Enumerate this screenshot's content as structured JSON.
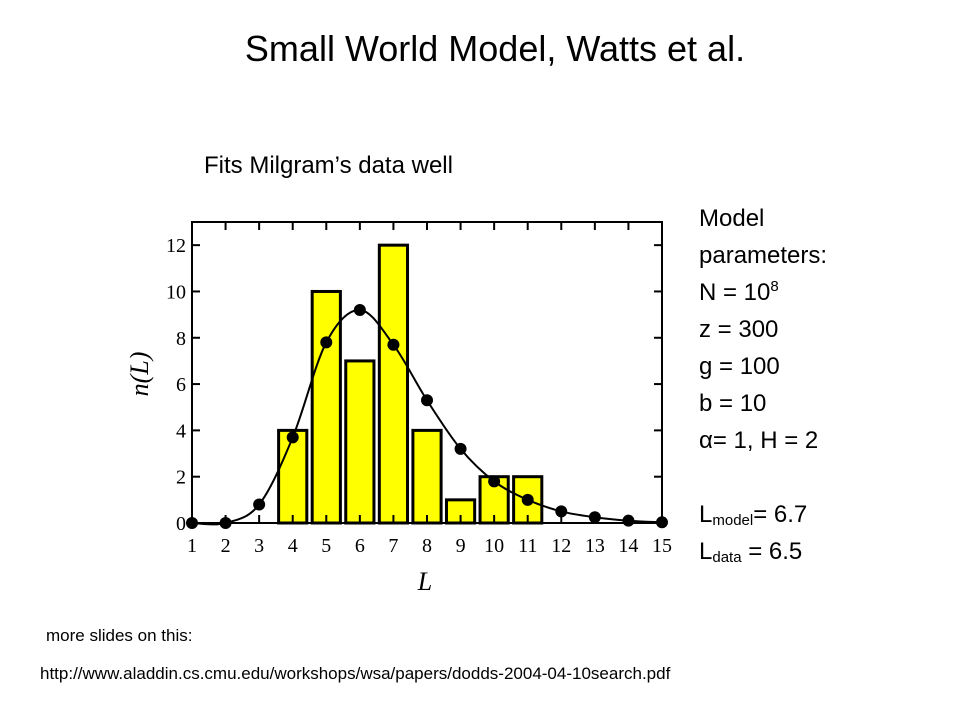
{
  "slide": {
    "title": "Small World Model, Watts et al.",
    "subtitle": "Fits Milgram’s data well",
    "params": {
      "heading_1": "Model",
      "heading_2": "parameters:",
      "n_label": "N = 10",
      "n_exp": "8",
      "z": "z = 300",
      "g": "g = 100",
      "b": "b = 10",
      "alpha_symbol": "α",
      "alpha_rest": "= 1, H = 2",
      "lmodel_L": "L",
      "lmodel_sub": "model",
      "lmodel_val": "= 6.7",
      "ldata_L": "L",
      "ldata_sub": "data",
      "ldata_val": " = 6.5"
    },
    "note": "more slides on this:",
    "url": "http://www.aladdin.cs.cmu.edu/workshops/wsa/papers/dodds-2004-04-10search.pdf"
  },
  "chart_data": {
    "type": "bar",
    "x": [
      1,
      2,
      3,
      4,
      5,
      6,
      7,
      8,
      9,
      10,
      11,
      12,
      13,
      14,
      15
    ],
    "xlabel": "L",
    "ylabel_main": "n",
    "ylabel_arg": "L",
    "xlim": [
      1,
      15
    ],
    "ylim": [
      0,
      13
    ],
    "yticks": [
      0,
      2,
      4,
      6,
      8,
      10,
      12
    ],
    "bar_color": "#ffff00",
    "series": [
      {
        "type": "bar",
        "values": [
          0,
          0,
          0,
          4,
          10,
          7,
          12,
          4,
          1,
          2,
          2,
          0,
          0,
          0,
          0
        ]
      },
      {
        "type": "line",
        "values": [
          0,
          0,
          0.8,
          3.7,
          7.8,
          9.2,
          7.7,
          5.3,
          3.2,
          1.8,
          1.0,
          0.5,
          0.25,
          0.1,
          0.03
        ]
      }
    ]
  }
}
